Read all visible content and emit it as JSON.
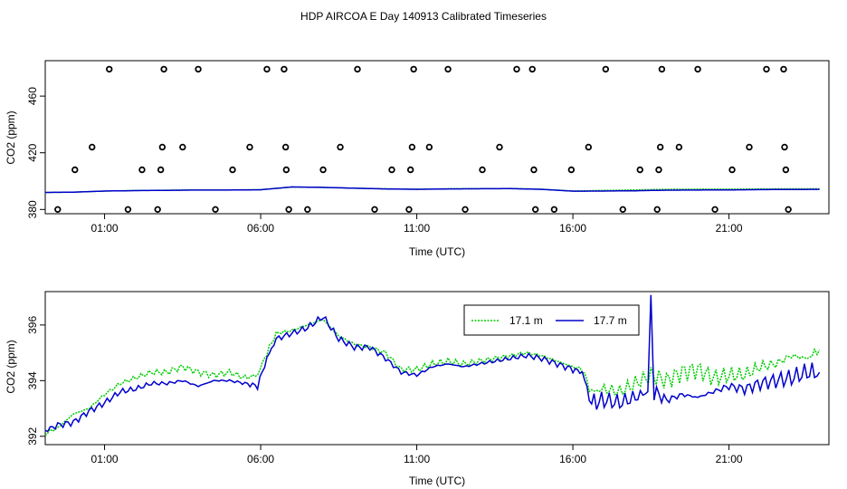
{
  "title": "HDP AIRCOA E  Day 140913  Calibrated Timeseries",
  "chart_data": [
    {
      "type": "scatter",
      "xlabel": "Time (UTC)",
      "ylabel": "CO2 (ppm)",
      "x_ticks": [
        "01:00",
        "06:00",
        "11:00",
        "16:00",
        "21:00"
      ],
      "x_tick_hours": [
        1,
        6,
        11,
        16,
        21
      ],
      "y_ticks": [
        380,
        420,
        460
      ],
      "xlim": [
        -0.9,
        24.2
      ],
      "ylim": [
        377,
        485
      ],
      "grid": false,
      "colors": {
        "17.1 m": "#00cc00",
        "17.7 m": "#0000cc",
        "calibration": "#000000"
      },
      "calibration_points": [
        {
          "x": -0.5,
          "y": 380
        },
        {
          "x": 0.05,
          "y": 408
        },
        {
          "x": 0.6,
          "y": 424
        },
        {
          "x": 1.15,
          "y": 479
        },
        {
          "x": 1.75,
          "y": 380
        },
        {
          "x": 2.2,
          "y": 408
        },
        {
          "x": 2.7,
          "y": 380
        },
        {
          "x": 2.8,
          "y": 408
        },
        {
          "x": 2.85,
          "y": 424
        },
        {
          "x": 2.9,
          "y": 479
        },
        {
          "x": 3.5,
          "y": 424
        },
        {
          "x": 4.0,
          "y": 479
        },
        {
          "x": 4.55,
          "y": 380
        },
        {
          "x": 5.1,
          "y": 408
        },
        {
          "x": 5.65,
          "y": 424
        },
        {
          "x": 6.2,
          "y": 479
        },
        {
          "x": 6.75,
          "y": 479
        },
        {
          "x": 6.8,
          "y": 424
        },
        {
          "x": 6.82,
          "y": 408
        },
        {
          "x": 6.9,
          "y": 380
        },
        {
          "x": 7.5,
          "y": 380
        },
        {
          "x": 8.0,
          "y": 408
        },
        {
          "x": 8.55,
          "y": 424
        },
        {
          "x": 9.1,
          "y": 479
        },
        {
          "x": 9.65,
          "y": 380
        },
        {
          "x": 10.2,
          "y": 408
        },
        {
          "x": 10.75,
          "y": 380
        },
        {
          "x": 10.8,
          "y": 408
        },
        {
          "x": 10.85,
          "y": 424
        },
        {
          "x": 10.9,
          "y": 479
        },
        {
          "x": 11.4,
          "y": 424
        },
        {
          "x": 12.0,
          "y": 479
        },
        {
          "x": 12.55,
          "y": 380
        },
        {
          "x": 13.1,
          "y": 408
        },
        {
          "x": 13.65,
          "y": 424
        },
        {
          "x": 14.2,
          "y": 479
        },
        {
          "x": 14.7,
          "y": 479
        },
        {
          "x": 14.75,
          "y": 408
        },
        {
          "x": 14.8,
          "y": 380
        },
        {
          "x": 15.4,
          "y": 380
        },
        {
          "x": 15.95,
          "y": 408
        },
        {
          "x": 16.5,
          "y": 424
        },
        {
          "x": 17.05,
          "y": 479
        },
        {
          "x": 17.6,
          "y": 380
        },
        {
          "x": 18.15,
          "y": 408
        },
        {
          "x": 18.7,
          "y": 380
        },
        {
          "x": 18.75,
          "y": 408
        },
        {
          "x": 18.8,
          "y": 424
        },
        {
          "x": 18.85,
          "y": 479
        },
        {
          "x": 19.4,
          "y": 424
        },
        {
          "x": 20.0,
          "y": 479
        },
        {
          "x": 20.55,
          "y": 380
        },
        {
          "x": 21.1,
          "y": 408
        },
        {
          "x": 21.65,
          "y": 424
        },
        {
          "x": 22.2,
          "y": 479
        },
        {
          "x": 22.75,
          "y": 479
        },
        {
          "x": 22.78,
          "y": 424
        },
        {
          "x": 22.82,
          "y": 408
        },
        {
          "x": 22.9,
          "y": 380
        }
      ],
      "series": [
        {
          "name": "17.1 m",
          "x": [
            -0.9,
            0,
            1,
            2,
            3,
            4,
            5,
            6,
            7,
            8,
            9,
            10,
            11,
            12,
            13,
            14,
            15,
            16,
            17,
            18,
            19,
            20,
            21,
            22,
            23,
            23.9
          ],
          "values": [
            392,
            392.2,
            393,
            393.4,
            393.6,
            393.8,
            393.8,
            394,
            395.8,
            395.5,
            395,
            394.6,
            394.3,
            394.6,
            394.7,
            394.8,
            394.3,
            393,
            393.4,
            393.8,
            394.2,
            394.3,
            394.3,
            394.5,
            394.6,
            394.6
          ]
        },
        {
          "name": "17.7 m",
          "x": [
            -0.9,
            0,
            1,
            2,
            3,
            4,
            5,
            6,
            7,
            8,
            9,
            10,
            11,
            12,
            13,
            14,
            15,
            16,
            17,
            18,
            19,
            20,
            21,
            22,
            23,
            23.9
          ],
          "values": [
            392,
            392.2,
            393,
            393.3,
            393.5,
            393.7,
            393.7,
            393.9,
            395.9,
            395.6,
            395,
            394.5,
            394.2,
            394.5,
            394.6,
            394.7,
            394.2,
            392.9,
            393,
            393.2,
            393.6,
            393.7,
            393.8,
            394,
            394.1,
            394.2
          ]
        }
      ]
    },
    {
      "type": "line",
      "xlabel": "Time (UTC)",
      "ylabel": "CO2 (ppm)",
      "x_ticks": [
        "01:00",
        "06:00",
        "11:00",
        "16:00",
        "21:00"
      ],
      "x_tick_hours": [
        1,
        6,
        11,
        16,
        21
      ],
      "y_ticks": [
        392,
        394,
        396
      ],
      "xlim": [
        -0.9,
        24.2
      ],
      "ylim": [
        391.7,
        397.2
      ],
      "grid": false,
      "legend": {
        "placement": "top-right",
        "entries": [
          "17.1 m",
          "17.7 m"
        ]
      },
      "series": [
        {
          "name": "17.1 m",
          "color": "#00cc00",
          "x": [
            -0.9,
            -0.5,
            0,
            0.5,
            1,
            1.5,
            2,
            2.5,
            3,
            3.5,
            4,
            4.5,
            5,
            5.5,
            5.9,
            6.2,
            6.5,
            7,
            7.5,
            8,
            8.5,
            9,
            9.5,
            10,
            10.5,
            11,
            11.5,
            12,
            12.5,
            13,
            13.5,
            14,
            14.5,
            15,
            15.5,
            16,
            16.3,
            16.6,
            17,
            17.5,
            18,
            18.5,
            19,
            19.5,
            20,
            20.5,
            21,
            21.5,
            22,
            22.5,
            23,
            23.5,
            23.9
          ],
          "values": [
            392.1,
            392.3,
            392.8,
            393.0,
            393.5,
            393.9,
            394.1,
            394.3,
            394.3,
            394.5,
            394.3,
            394.2,
            394.3,
            394.1,
            394.2,
            395.0,
            395.7,
            395.8,
            396.0,
            396.2,
            395.6,
            395.3,
            395.2,
            395.0,
            394.4,
            394.4,
            394.6,
            394.7,
            394.6,
            394.7,
            394.8,
            394.9,
            395.0,
            394.9,
            394.7,
            394.5,
            394.4,
            393.6,
            393.7,
            393.6,
            393.9,
            394.2,
            394.0,
            394.3,
            394.4,
            394.1,
            394.2,
            394.2,
            394.5,
            394.6,
            394.9,
            394.8,
            395.1
          ]
        },
        {
          "name": "17.7 m",
          "color": "#0000cc",
          "x": [
            -0.9,
            -0.5,
            0,
            0.5,
            1,
            1.5,
            2,
            2.5,
            3,
            3.5,
            4,
            4.5,
            5,
            5.5,
            5.9,
            6.2,
            6.5,
            7,
            7.5,
            8,
            8.5,
            9,
            9.5,
            10,
            10.5,
            11,
            11.5,
            12,
            12.5,
            13,
            13.5,
            14,
            14.5,
            15,
            15.5,
            16,
            16.3,
            16.6,
            17,
            17.5,
            18,
            18.4,
            18.5,
            18.6,
            19,
            19.5,
            20,
            20.5,
            21,
            21.5,
            22,
            22.5,
            23,
            23.5,
            23.9
          ],
          "values": [
            392.2,
            392.4,
            392.5,
            392.9,
            393.2,
            393.6,
            393.7,
            393.9,
            393.9,
            394.0,
            393.8,
            394.0,
            394.0,
            393.9,
            393.8,
            394.8,
            395.5,
            395.7,
            395.9,
            396.3,
            395.5,
            395.2,
            395.2,
            394.8,
            394.3,
            394.2,
            394.5,
            394.6,
            394.5,
            394.6,
            394.7,
            394.8,
            394.9,
            394.8,
            394.6,
            394.4,
            394.3,
            393.2,
            393.3,
            393.2,
            393.4,
            393.6,
            397.1,
            393.6,
            393.3,
            393.5,
            393.4,
            393.6,
            393.8,
            393.7,
            393.9,
            394.0,
            394.1,
            394.3,
            394.3
          ]
        }
      ]
    }
  ]
}
